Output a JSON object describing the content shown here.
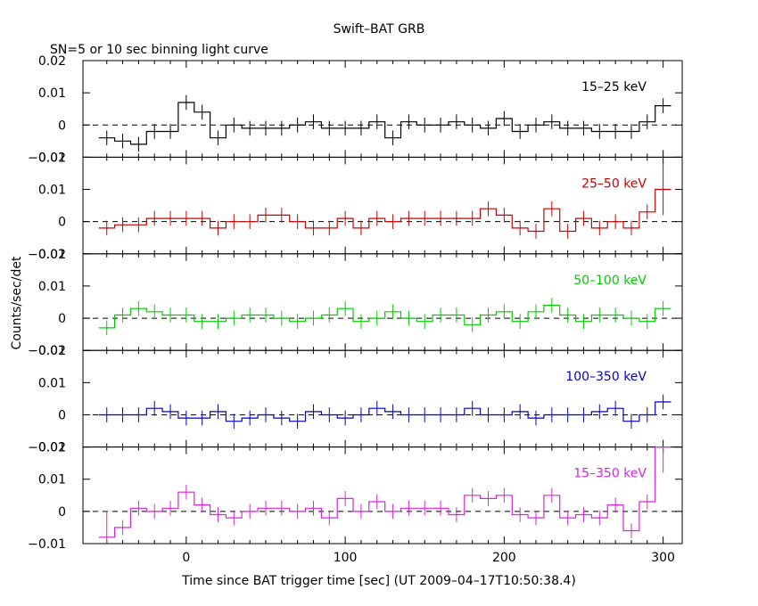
{
  "header": {
    "title": "Swift–BAT GRB",
    "subtitle": "SN=5 or 10 sec binning light curve"
  },
  "axes": {
    "xlabel": "Time since BAT trigger time [sec] (UT 2009–04–17T10:50:38.4)",
    "ylabel": "Counts/sec/det",
    "x_ticklabels": [
      "0",
      "100",
      "200",
      "300"
    ]
  },
  "chart_data": [
    {
      "type": "line",
      "style": "step-with-errorbars",
      "series_label": "15–25 keV",
      "color": "#000000",
      "xlim": [
        -65,
        312
      ],
      "ylim": [
        -0.01,
        0.02
      ],
      "ytick_values": [
        -0.01,
        0,
        0.01,
        0.02
      ],
      "ytick_labels": [
        "−0.01",
        "0",
        "0.01",
        "0.02"
      ],
      "zero_line": true,
      "x": [
        -50,
        -40,
        -30,
        -20,
        -10,
        0,
        10,
        20,
        30,
        40,
        50,
        60,
        70,
        80,
        90,
        100,
        110,
        120,
        130,
        140,
        150,
        160,
        170,
        180,
        190,
        200,
        210,
        220,
        230,
        240,
        250,
        260,
        270,
        280,
        290,
        300
      ],
      "y": [
        -0.004,
        -0.005,
        -0.006,
        -0.002,
        -0.002,
        0.007,
        0.004,
        -0.004,
        0.0,
        -0.001,
        -0.001,
        -0.001,
        0.0,
        0.001,
        -0.001,
        -0.001,
        -0.001,
        0.001,
        -0.004,
        0.001,
        0.0,
        0.0,
        0.001,
        0.0,
        -0.001,
        0.002,
        -0.002,
        0.0,
        0.001,
        -0.001,
        -0.001,
        -0.002,
        -0.002,
        -0.002,
        0.001,
        0.006
      ]
    },
    {
      "type": "line",
      "style": "step-with-errorbars",
      "series_label": "25–50 keV",
      "color": "#cc0000",
      "xlim": [
        -65,
        312
      ],
      "ylim": [
        -0.01,
        0.02
      ],
      "ytick_values": [
        -0.01,
        0,
        0.01,
        0.02
      ],
      "ytick_labels": [
        "−0.01",
        "0",
        "0.01",
        "0.02"
      ],
      "zero_line": true,
      "x": [
        -50,
        -40,
        -30,
        -20,
        -10,
        0,
        10,
        20,
        30,
        40,
        50,
        60,
        70,
        80,
        90,
        100,
        110,
        120,
        130,
        140,
        150,
        160,
        170,
        180,
        190,
        200,
        210,
        220,
        230,
        240,
        250,
        260,
        270,
        280,
        290,
        300
      ],
      "y": [
        -0.002,
        -0.001,
        -0.001,
        0.001,
        0.001,
        0.001,
        0.001,
        -0.002,
        0.0,
        0.0,
        0.002,
        0.002,
        0.0,
        -0.002,
        -0.002,
        0.001,
        -0.002,
        0.001,
        0.0,
        0.001,
        0.001,
        0.001,
        0.001,
        0.001,
        0.004,
        0.002,
        -0.002,
        -0.003,
        0.004,
        -0.003,
        0.001,
        -0.002,
        0.0,
        -0.002,
        0.003,
        0.01
      ]
    },
    {
      "type": "line",
      "style": "step-with-errorbars",
      "series_label": "50–100 keV",
      "color": "#00cc00",
      "xlim": [
        -65,
        312
      ],
      "ylim": [
        -0.01,
        0.02
      ],
      "ytick_values": [
        -0.01,
        0,
        0.01,
        0.02
      ],
      "ytick_labels": [
        "−0.01",
        "0",
        "0.01",
        "0.02"
      ],
      "zero_line": true,
      "x": [
        -50,
        -40,
        -30,
        -20,
        -10,
        0,
        10,
        20,
        30,
        40,
        50,
        60,
        70,
        80,
        90,
        100,
        110,
        120,
        130,
        140,
        150,
        160,
        170,
        180,
        190,
        200,
        210,
        220,
        230,
        240,
        250,
        260,
        270,
        280,
        290,
        300
      ],
      "y": [
        -0.003,
        0.001,
        0.003,
        0.002,
        0.001,
        0.001,
        -0.001,
        -0.001,
        0.0,
        0.001,
        0.001,
        0.0,
        -0.001,
        0.0,
        0.001,
        0.003,
        -0.001,
        0.0,
        0.002,
        0.0,
        -0.001,
        0.001,
        0.001,
        -0.002,
        0.001,
        0.002,
        -0.001,
        0.002,
        0.004,
        0.001,
        -0.001,
        0.001,
        0.001,
        0.0,
        -0.001,
        0.003
      ]
    },
    {
      "type": "line",
      "style": "step-with-errorbars",
      "series_label": "100–350 keV",
      "color": "#0000cc",
      "xlim": [
        -65,
        312
      ],
      "ylim": [
        -0.01,
        0.02
      ],
      "ytick_values": [
        -0.01,
        0,
        0.01,
        0.02
      ],
      "ytick_labels": [
        "−0.01",
        "0",
        "0.01",
        "0.02"
      ],
      "zero_line": true,
      "x": [
        -50,
        -40,
        -30,
        -20,
        -10,
        0,
        10,
        20,
        30,
        40,
        50,
        60,
        70,
        80,
        90,
        100,
        110,
        120,
        130,
        140,
        150,
        160,
        170,
        180,
        190,
        200,
        210,
        220,
        230,
        240,
        250,
        260,
        270,
        280,
        290,
        300
      ],
      "y": [
        0.0,
        0.0,
        0.0,
        0.002,
        0.001,
        -0.001,
        -0.001,
        0.001,
        -0.002,
        -0.001,
        0.0,
        -0.001,
        -0.002,
        0.001,
        0.0,
        -0.001,
        0.0,
        0.002,
        0.001,
        0.0,
        0.0,
        0.0,
        0.0,
        0.002,
        0.0,
        0.0,
        0.001,
        -0.001,
        0.0,
        0.0,
        0.0,
        0.001,
        0.002,
        -0.002,
        0.0,
        0.004
      ]
    },
    {
      "type": "line",
      "style": "step-with-errorbars",
      "series_label": "15–350 keV",
      "color": "#dd22dd",
      "xlim": [
        -65,
        312
      ],
      "ylim": [
        -0.01,
        0.02
      ],
      "ytick_values": [
        -0.01,
        0,
        0.01,
        0.02
      ],
      "ytick_labels": [
        "−0.01",
        "0",
        "0.01",
        "0.02"
      ],
      "zero_line": true,
      "x": [
        -50,
        -40,
        -30,
        -20,
        -10,
        0,
        10,
        20,
        30,
        40,
        50,
        60,
        70,
        80,
        90,
        100,
        110,
        120,
        130,
        140,
        150,
        160,
        170,
        180,
        190,
        200,
        210,
        220,
        230,
        240,
        250,
        260,
        270,
        280,
        290,
        300
      ],
      "y": [
        -0.008,
        -0.005,
        0.001,
        0.0,
        0.001,
        0.006,
        0.002,
        -0.001,
        -0.002,
        0.0,
        0.001,
        0.001,
        0.0,
        0.001,
        -0.002,
        0.004,
        0.0,
        0.003,
        0.0,
        0.001,
        0.001,
        0.001,
        -0.001,
        0.005,
        0.004,
        0.005,
        -0.001,
        -0.002,
        0.005,
        -0.002,
        -0.001,
        -0.002,
        0.002,
        -0.006,
        0.003,
        0.02
      ]
    }
  ]
}
